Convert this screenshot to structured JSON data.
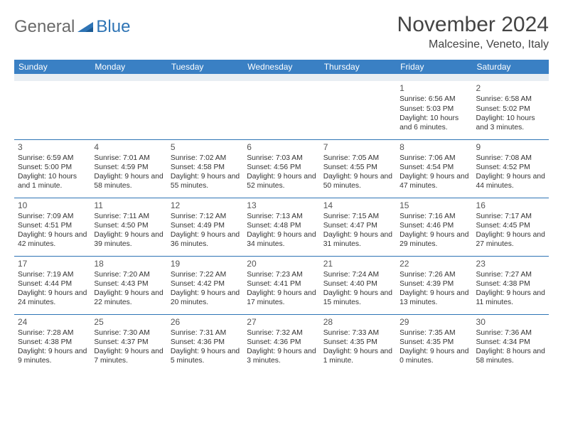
{
  "logo": {
    "word1": "General",
    "word2": "Blue"
  },
  "title": "November 2024",
  "location": "Malcesine, Veneto, Italy",
  "header_bg": "#3a80c4",
  "header_text": "#ffffff",
  "border_color": "#2e74b5",
  "spacer_bg": "#e8eef3",
  "days": [
    "Sunday",
    "Monday",
    "Tuesday",
    "Wednesday",
    "Thursday",
    "Friday",
    "Saturday"
  ],
  "weeks": [
    [
      null,
      null,
      null,
      null,
      null,
      {
        "n": "1",
        "sr": "Sunrise: 6:56 AM",
        "ss": "Sunset: 5:03 PM",
        "dl": "Daylight: 10 hours and 6 minutes."
      },
      {
        "n": "2",
        "sr": "Sunrise: 6:58 AM",
        "ss": "Sunset: 5:02 PM",
        "dl": "Daylight: 10 hours and 3 minutes."
      }
    ],
    [
      {
        "n": "3",
        "sr": "Sunrise: 6:59 AM",
        "ss": "Sunset: 5:00 PM",
        "dl": "Daylight: 10 hours and 1 minute."
      },
      {
        "n": "4",
        "sr": "Sunrise: 7:01 AM",
        "ss": "Sunset: 4:59 PM",
        "dl": "Daylight: 9 hours and 58 minutes."
      },
      {
        "n": "5",
        "sr": "Sunrise: 7:02 AM",
        "ss": "Sunset: 4:58 PM",
        "dl": "Daylight: 9 hours and 55 minutes."
      },
      {
        "n": "6",
        "sr": "Sunrise: 7:03 AM",
        "ss": "Sunset: 4:56 PM",
        "dl": "Daylight: 9 hours and 52 minutes."
      },
      {
        "n": "7",
        "sr": "Sunrise: 7:05 AM",
        "ss": "Sunset: 4:55 PM",
        "dl": "Daylight: 9 hours and 50 minutes."
      },
      {
        "n": "8",
        "sr": "Sunrise: 7:06 AM",
        "ss": "Sunset: 4:54 PM",
        "dl": "Daylight: 9 hours and 47 minutes."
      },
      {
        "n": "9",
        "sr": "Sunrise: 7:08 AM",
        "ss": "Sunset: 4:52 PM",
        "dl": "Daylight: 9 hours and 44 minutes."
      }
    ],
    [
      {
        "n": "10",
        "sr": "Sunrise: 7:09 AM",
        "ss": "Sunset: 4:51 PM",
        "dl": "Daylight: 9 hours and 42 minutes."
      },
      {
        "n": "11",
        "sr": "Sunrise: 7:11 AM",
        "ss": "Sunset: 4:50 PM",
        "dl": "Daylight: 9 hours and 39 minutes."
      },
      {
        "n": "12",
        "sr": "Sunrise: 7:12 AM",
        "ss": "Sunset: 4:49 PM",
        "dl": "Daylight: 9 hours and 36 minutes."
      },
      {
        "n": "13",
        "sr": "Sunrise: 7:13 AM",
        "ss": "Sunset: 4:48 PM",
        "dl": "Daylight: 9 hours and 34 minutes."
      },
      {
        "n": "14",
        "sr": "Sunrise: 7:15 AM",
        "ss": "Sunset: 4:47 PM",
        "dl": "Daylight: 9 hours and 31 minutes."
      },
      {
        "n": "15",
        "sr": "Sunrise: 7:16 AM",
        "ss": "Sunset: 4:46 PM",
        "dl": "Daylight: 9 hours and 29 minutes."
      },
      {
        "n": "16",
        "sr": "Sunrise: 7:17 AM",
        "ss": "Sunset: 4:45 PM",
        "dl": "Daylight: 9 hours and 27 minutes."
      }
    ],
    [
      {
        "n": "17",
        "sr": "Sunrise: 7:19 AM",
        "ss": "Sunset: 4:44 PM",
        "dl": "Daylight: 9 hours and 24 minutes."
      },
      {
        "n": "18",
        "sr": "Sunrise: 7:20 AM",
        "ss": "Sunset: 4:43 PM",
        "dl": "Daylight: 9 hours and 22 minutes."
      },
      {
        "n": "19",
        "sr": "Sunrise: 7:22 AM",
        "ss": "Sunset: 4:42 PM",
        "dl": "Daylight: 9 hours and 20 minutes."
      },
      {
        "n": "20",
        "sr": "Sunrise: 7:23 AM",
        "ss": "Sunset: 4:41 PM",
        "dl": "Daylight: 9 hours and 17 minutes."
      },
      {
        "n": "21",
        "sr": "Sunrise: 7:24 AM",
        "ss": "Sunset: 4:40 PM",
        "dl": "Daylight: 9 hours and 15 minutes."
      },
      {
        "n": "22",
        "sr": "Sunrise: 7:26 AM",
        "ss": "Sunset: 4:39 PM",
        "dl": "Daylight: 9 hours and 13 minutes."
      },
      {
        "n": "23",
        "sr": "Sunrise: 7:27 AM",
        "ss": "Sunset: 4:38 PM",
        "dl": "Daylight: 9 hours and 11 minutes."
      }
    ],
    [
      {
        "n": "24",
        "sr": "Sunrise: 7:28 AM",
        "ss": "Sunset: 4:38 PM",
        "dl": "Daylight: 9 hours and 9 minutes."
      },
      {
        "n": "25",
        "sr": "Sunrise: 7:30 AM",
        "ss": "Sunset: 4:37 PM",
        "dl": "Daylight: 9 hours and 7 minutes."
      },
      {
        "n": "26",
        "sr": "Sunrise: 7:31 AM",
        "ss": "Sunset: 4:36 PM",
        "dl": "Daylight: 9 hours and 5 minutes."
      },
      {
        "n": "27",
        "sr": "Sunrise: 7:32 AM",
        "ss": "Sunset: 4:36 PM",
        "dl": "Daylight: 9 hours and 3 minutes."
      },
      {
        "n": "28",
        "sr": "Sunrise: 7:33 AM",
        "ss": "Sunset: 4:35 PM",
        "dl": "Daylight: 9 hours and 1 minute."
      },
      {
        "n": "29",
        "sr": "Sunrise: 7:35 AM",
        "ss": "Sunset: 4:35 PM",
        "dl": "Daylight: 9 hours and 0 minutes."
      },
      {
        "n": "30",
        "sr": "Sunrise: 7:36 AM",
        "ss": "Sunset: 4:34 PM",
        "dl": "Daylight: 8 hours and 58 minutes."
      }
    ]
  ]
}
